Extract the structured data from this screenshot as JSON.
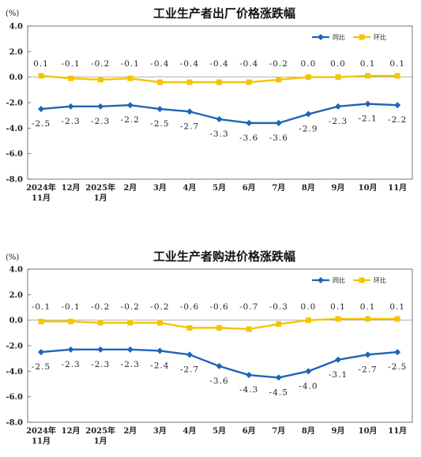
{
  "chart_data": [
    {
      "type": "line",
      "title": "工业生产者出厂价格涨跌幅",
      "unit": "(%)",
      "ylim": [
        -8.0,
        4.0
      ],
      "yticks": [
        "4.0",
        "2.0",
        "0.0",
        "-2.0",
        "-4.0",
        "-6.0",
        "-8.0"
      ],
      "categories": [
        "2024年|11月",
        "12月",
        "2025年|1月",
        "2月",
        "3月",
        "4月",
        "5月",
        "6月",
        "7月",
        "8月",
        "9月",
        "10月",
        "11月"
      ],
      "legend_position": "top-right",
      "series": [
        {
          "name": "同比",
          "color": "#1f64b8",
          "marker": "diamond",
          "values": [
            -2.5,
            -2.3,
            -2.3,
            -2.2,
            -2.5,
            -2.7,
            -3.3,
            -3.6,
            -3.6,
            -2.9,
            -2.3,
            -2.1,
            -2.2
          ],
          "labels": [
            "-2.5",
            "-2.3",
            "-2.3",
            "-2.2",
            "-2.5",
            "-2.7",
            "-3.3",
            "-3.6",
            "-3.6",
            "-2.9",
            "-2.3",
            "-2.1",
            "-2.2"
          ]
        },
        {
          "name": "环比",
          "color": "#f5c400",
          "marker": "square",
          "values": [
            0.1,
            -0.1,
            -0.2,
            -0.1,
            -0.4,
            -0.4,
            -0.4,
            -0.4,
            -0.2,
            0.0,
            0.0,
            0.1,
            0.1
          ],
          "labels": [
            "0.1",
            "-0.1",
            "-0.2",
            "-0.1",
            "-0.4",
            "-0.4",
            "-0.4",
            "-0.4",
            "-0.2",
            "0.0",
            "0.0",
            "0.1",
            "0.1"
          ]
        }
      ]
    },
    {
      "type": "line",
      "title": "工业生产者购进价格涨跌幅",
      "unit": "(%)",
      "ylim": [
        -8.0,
        4.0
      ],
      "yticks": [
        "4.0",
        "2.0",
        "0.0",
        "-2.0",
        "-4.0",
        "-6.0",
        "-8.0"
      ],
      "categories": [
        "2024年|11月",
        "12月",
        "2025年|1月",
        "2月",
        "3月",
        "4月",
        "5月",
        "6月",
        "7月",
        "8月",
        "9月",
        "10月",
        "11月"
      ],
      "legend_position": "top-right",
      "series": [
        {
          "name": "同比",
          "color": "#1f64b8",
          "marker": "diamond",
          "values": [
            -2.5,
            -2.3,
            -2.3,
            -2.3,
            -2.4,
            -2.7,
            -3.6,
            -4.3,
            -4.5,
            -4.0,
            -3.1,
            -2.7,
            -2.5
          ],
          "labels": [
            "-2.5",
            "-2.3",
            "-2.3",
            "-2.3",
            "-2.4",
            "-2.7",
            "-3.6",
            "-4.3",
            "-4.5",
            "-4.0",
            "-3.1",
            "-2.7",
            "-2.5"
          ]
        },
        {
          "name": "环比",
          "color": "#f5c400",
          "marker": "square",
          "values": [
            -0.1,
            -0.1,
            -0.2,
            -0.2,
            -0.2,
            -0.6,
            -0.6,
            -0.7,
            -0.3,
            0.0,
            0.1,
            0.1,
            0.1
          ],
          "labels": [
            "-0.1",
            "-0.1",
            "-0.2",
            "-0.2",
            "-0.2",
            "-0.6",
            "-0.6",
            "-0.7",
            "-0.3",
            "0.0",
            "0.1",
            "0.1",
            "0.1"
          ]
        }
      ]
    }
  ]
}
